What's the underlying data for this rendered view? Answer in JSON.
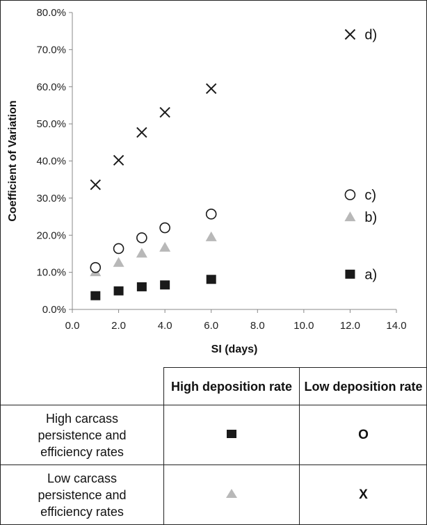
{
  "chart_data": {
    "type": "scatter",
    "xlabel": "SI (days)",
    "ylabel": "Coefficient of Variation",
    "xlim": [
      0,
      14
    ],
    "ylim": [
      0,
      0.8
    ],
    "x_ticks": [
      "0.0",
      "2.0",
      "4.0",
      "6.0",
      "8.0",
      "10.0",
      "12.0",
      "14.0"
    ],
    "y_ticks": [
      "0.0%",
      "10.0%",
      "20.0%",
      "30.0%",
      "40.0%",
      "50.0%",
      "60.0%",
      "70.0%",
      "80.0%"
    ],
    "grid": false,
    "series": [
      {
        "name": "a)",
        "marker": "square",
        "color": "#1a1a1a",
        "points": [
          [
            1,
            0.037
          ],
          [
            2,
            0.05
          ],
          [
            3,
            0.061
          ],
          [
            4,
            0.066
          ],
          [
            6,
            0.081
          ],
          [
            12,
            0.095
          ]
        ]
      },
      {
        "name": "b)",
        "marker": "triangle",
        "color": "#b8b8b8",
        "points": [
          [
            1,
            0.101
          ],
          [
            2,
            0.126
          ],
          [
            3,
            0.151
          ],
          [
            4,
            0.167
          ],
          [
            6,
            0.195
          ],
          [
            12,
            0.249
          ]
        ]
      },
      {
        "name": "c)",
        "marker": "circle-open",
        "color": "#1a1a1a",
        "points": [
          [
            1,
            0.113
          ],
          [
            2,
            0.164
          ],
          [
            3,
            0.193
          ],
          [
            4,
            0.22
          ],
          [
            6,
            0.257
          ],
          [
            12,
            0.309
          ]
        ]
      },
      {
        "name": "d)",
        "marker": "x",
        "color": "#1a1a1a",
        "points": [
          [
            1,
            0.336
          ],
          [
            2,
            0.402
          ],
          [
            3,
            0.477
          ],
          [
            4,
            0.531
          ],
          [
            6,
            0.595
          ],
          [
            12,
            0.741
          ]
        ]
      }
    ]
  },
  "legend_table": {
    "col_headers": [
      "High deposition rate",
      "Low deposition rate"
    ],
    "rows": [
      {
        "label_lines": [
          "High carcass",
          "persistence and",
          "efficiency rates"
        ],
        "high_symbol": "square",
        "low_symbol_text": "O"
      },
      {
        "label_lines": [
          "Low carcass",
          "persistence and",
          "efficiency rates"
        ],
        "high_symbol": "triangle",
        "low_symbol_text": "X"
      }
    ]
  }
}
